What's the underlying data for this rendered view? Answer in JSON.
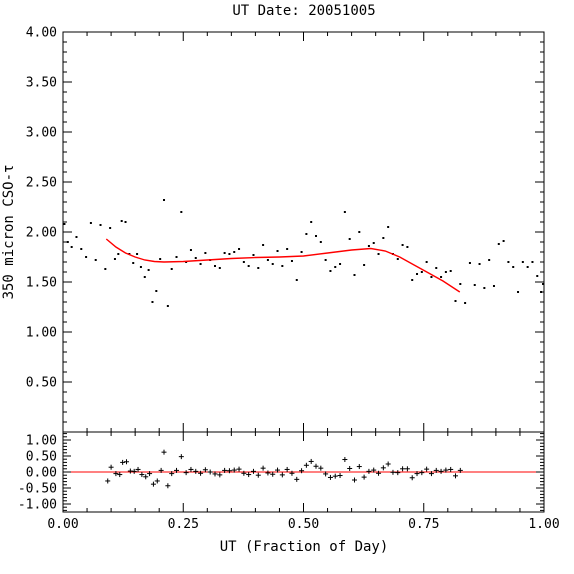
{
  "chart_data": {
    "title": "UT Date: 20051005",
    "xlabel": "UT (Fraction of Day)",
    "ylabel": "350 micron CSO-τ",
    "xlim": [
      0,
      1
    ],
    "type": "scatter",
    "x_ticks": [
      "0.00",
      "0.25",
      "0.50",
      "0.75",
      "1.00"
    ],
    "main_panel": {
      "ylim": [
        0,
        4
      ],
      "y_ticks": [
        "4.00",
        "3.50",
        "3.00",
        "2.50",
        "2.00",
        "1.50",
        "1.00",
        "0.50"
      ],
      "points": [
        [
          0.003,
          2.08
        ],
        [
          0.01,
          1.9
        ],
        [
          0.018,
          1.85
        ],
        [
          0.028,
          1.95
        ],
        [
          0.038,
          1.83
        ],
        [
          0.048,
          1.75
        ],
        [
          0.058,
          2.09
        ],
        [
          0.068,
          1.72
        ],
        [
          0.078,
          2.07
        ],
        [
          0.088,
          1.63
        ],
        [
          0.098,
          2.04
        ],
        [
          0.108,
          1.73
        ],
        [
          0.115,
          1.78
        ],
        [
          0.122,
          2.11
        ],
        [
          0.13,
          2.1
        ],
        [
          0.138,
          1.78
        ],
        [
          0.146,
          1.69
        ],
        [
          0.154,
          1.78
        ],
        [
          0.162,
          1.65
        ],
        [
          0.17,
          1.55
        ],
        [
          0.178,
          1.62
        ],
        [
          0.186,
          1.3
        ],
        [
          0.194,
          1.41
        ],
        [
          0.202,
          1.73
        ],
        [
          0.21,
          2.32
        ],
        [
          0.218,
          1.26
        ],
        [
          0.226,
          1.63
        ],
        [
          0.236,
          1.75
        ],
        [
          0.246,
          2.2
        ],
        [
          0.256,
          1.7
        ],
        [
          0.266,
          1.82
        ],
        [
          0.276,
          1.74
        ],
        [
          0.286,
          1.68
        ],
        [
          0.296,
          1.79
        ],
        [
          0.306,
          1.72
        ],
        [
          0.316,
          1.66
        ],
        [
          0.326,
          1.64
        ],
        [
          0.336,
          1.79
        ],
        [
          0.346,
          1.78
        ],
        [
          0.356,
          1.8
        ],
        [
          0.366,
          1.83
        ],
        [
          0.376,
          1.7
        ],
        [
          0.386,
          1.66
        ],
        [
          0.396,
          1.77
        ],
        [
          0.406,
          1.64
        ],
        [
          0.416,
          1.87
        ],
        [
          0.426,
          1.72
        ],
        [
          0.436,
          1.68
        ],
        [
          0.446,
          1.81
        ],
        [
          0.456,
          1.66
        ],
        [
          0.466,
          1.83
        ],
        [
          0.476,
          1.71
        ],
        [
          0.486,
          1.52
        ],
        [
          0.496,
          1.8
        ],
        [
          0.506,
          1.98
        ],
        [
          0.516,
          2.1
        ],
        [
          0.526,
          1.96
        ],
        [
          0.536,
          1.9
        ],
        [
          0.546,
          1.72
        ],
        [
          0.556,
          1.61
        ],
        [
          0.566,
          1.65
        ],
        [
          0.576,
          1.68
        ],
        [
          0.586,
          2.2
        ],
        [
          0.596,
          1.93
        ],
        [
          0.606,
          1.57
        ],
        [
          0.616,
          2.0
        ],
        [
          0.626,
          1.67
        ],
        [
          0.636,
          1.86
        ],
        [
          0.646,
          1.89
        ],
        [
          0.656,
          1.78
        ],
        [
          0.666,
          1.94
        ],
        [
          0.676,
          2.05
        ],
        [
          0.686,
          1.78
        ],
        [
          0.696,
          1.73
        ],
        [
          0.706,
          1.87
        ],
        [
          0.716,
          1.85
        ],
        [
          0.726,
          1.52
        ],
        [
          0.736,
          1.58
        ],
        [
          0.746,
          1.6
        ],
        [
          0.756,
          1.7
        ],
        [
          0.766,
          1.55
        ],
        [
          0.776,
          1.64
        ],
        [
          0.786,
          1.55
        ],
        [
          0.796,
          1.6
        ],
        [
          0.806,
          1.61
        ],
        [
          0.816,
          1.31
        ],
        [
          0.826,
          1.48
        ],
        [
          0.836,
          1.29
        ],
        [
          0.846,
          1.69
        ],
        [
          0.856,
          1.47
        ],
        [
          0.866,
          1.68
        ],
        [
          0.876,
          1.44
        ],
        [
          0.886,
          1.72
        ],
        [
          0.896,
          1.46
        ],
        [
          0.906,
          1.88
        ],
        [
          0.916,
          1.91
        ],
        [
          0.926,
          1.7
        ],
        [
          0.936,
          1.65
        ],
        [
          0.946,
          1.4
        ],
        [
          0.956,
          1.7
        ],
        [
          0.966,
          1.65
        ],
        [
          0.976,
          1.7
        ],
        [
          0.986,
          1.56
        ],
        [
          0.994,
          1.4
        ],
        [
          0.998,
          1.48
        ]
      ],
      "fit": [
        [
          0.09,
          1.93
        ],
        [
          0.11,
          1.85
        ],
        [
          0.13,
          1.79
        ],
        [
          0.15,
          1.75
        ],
        [
          0.17,
          1.72
        ],
        [
          0.19,
          1.705
        ],
        [
          0.21,
          1.7
        ],
        [
          0.25,
          1.705
        ],
        [
          0.3,
          1.72
        ],
        [
          0.35,
          1.735
        ],
        [
          0.4,
          1.745
        ],
        [
          0.45,
          1.75
        ],
        [
          0.5,
          1.76
        ],
        [
          0.55,
          1.79
        ],
        [
          0.6,
          1.82
        ],
        [
          0.64,
          1.835
        ],
        [
          0.67,
          1.81
        ],
        [
          0.7,
          1.75
        ],
        [
          0.73,
          1.67
        ],
        [
          0.76,
          1.59
        ],
        [
          0.79,
          1.51
        ],
        [
          0.825,
          1.4
        ]
      ]
    },
    "residual_panel": {
      "ylim": [
        -1.25,
        1.25
      ],
      "y_ticks": [
        "1.00",
        "0.50",
        "0.00",
        "-0.50",
        "-1.00"
      ],
      "points": [
        [
          0.093,
          -0.28
        ],
        [
          0.1,
          0.15
        ],
        [
          0.11,
          -0.05
        ],
        [
          0.118,
          -0.08
        ],
        [
          0.124,
          0.3
        ],
        [
          0.132,
          0.32
        ],
        [
          0.14,
          0.03
        ],
        [
          0.148,
          0.02
        ],
        [
          0.156,
          0.08
        ],
        [
          0.164,
          -0.08
        ],
        [
          0.172,
          -0.15
        ],
        [
          0.18,
          -0.05
        ],
        [
          0.188,
          -0.38
        ],
        [
          0.196,
          -0.28
        ],
        [
          0.204,
          0.05
        ],
        [
          0.21,
          0.62
        ],
        [
          0.218,
          -0.43
        ],
        [
          0.226,
          -0.05
        ],
        [
          0.236,
          0.05
        ],
        [
          0.246,
          0.48
        ],
        [
          0.256,
          -0.02
        ],
        [
          0.266,
          0.08
        ],
        [
          0.276,
          0.02
        ],
        [
          0.286,
          -0.04
        ],
        [
          0.296,
          0.07
        ],
        [
          0.306,
          0.0
        ],
        [
          0.316,
          -0.06
        ],
        [
          0.326,
          -0.09
        ],
        [
          0.336,
          0.05
        ],
        [
          0.346,
          0.04
        ],
        [
          0.356,
          0.06
        ],
        [
          0.366,
          0.09
        ],
        [
          0.376,
          -0.04
        ],
        [
          0.386,
          -0.08
        ],
        [
          0.396,
          0.02
        ],
        [
          0.406,
          -0.1
        ],
        [
          0.416,
          0.12
        ],
        [
          0.426,
          -0.03
        ],
        [
          0.436,
          -0.07
        ],
        [
          0.446,
          0.06
        ],
        [
          0.456,
          -0.09
        ],
        [
          0.466,
          0.08
        ],
        [
          0.476,
          -0.04
        ],
        [
          0.486,
          -0.23
        ],
        [
          0.496,
          0.04
        ],
        [
          0.506,
          0.21
        ],
        [
          0.516,
          0.33
        ],
        [
          0.526,
          0.18
        ],
        [
          0.536,
          0.12
        ],
        [
          0.546,
          -0.06
        ],
        [
          0.556,
          -0.17
        ],
        [
          0.566,
          -0.13
        ],
        [
          0.576,
          -0.11
        ],
        [
          0.586,
          0.39
        ],
        [
          0.596,
          0.11
        ],
        [
          0.606,
          -0.25
        ],
        [
          0.616,
          0.17
        ],
        [
          0.626,
          -0.16
        ],
        [
          0.636,
          0.02
        ],
        [
          0.646,
          0.06
        ],
        [
          0.656,
          -0.04
        ],
        [
          0.666,
          0.13
        ],
        [
          0.676,
          0.25
        ],
        [
          0.686,
          -0.01
        ],
        [
          0.696,
          -0.02
        ],
        [
          0.706,
          0.1
        ],
        [
          0.716,
          0.1
        ],
        [
          0.726,
          -0.18
        ],
        [
          0.736,
          -0.05
        ],
        [
          0.746,
          -0.02
        ],
        [
          0.756,
          0.09
        ],
        [
          0.766,
          -0.05
        ],
        [
          0.776,
          0.05
        ],
        [
          0.786,
          0.02
        ],
        [
          0.796,
          0.06
        ],
        [
          0.806,
          0.08
        ],
        [
          0.816,
          -0.12
        ],
        [
          0.826,
          0.05
        ]
      ],
      "zero_line": 0
    },
    "colors": {
      "fit": "#ff0000",
      "points": "#000000",
      "axes": "#000000"
    },
    "grid": false,
    "legend": "none"
  }
}
